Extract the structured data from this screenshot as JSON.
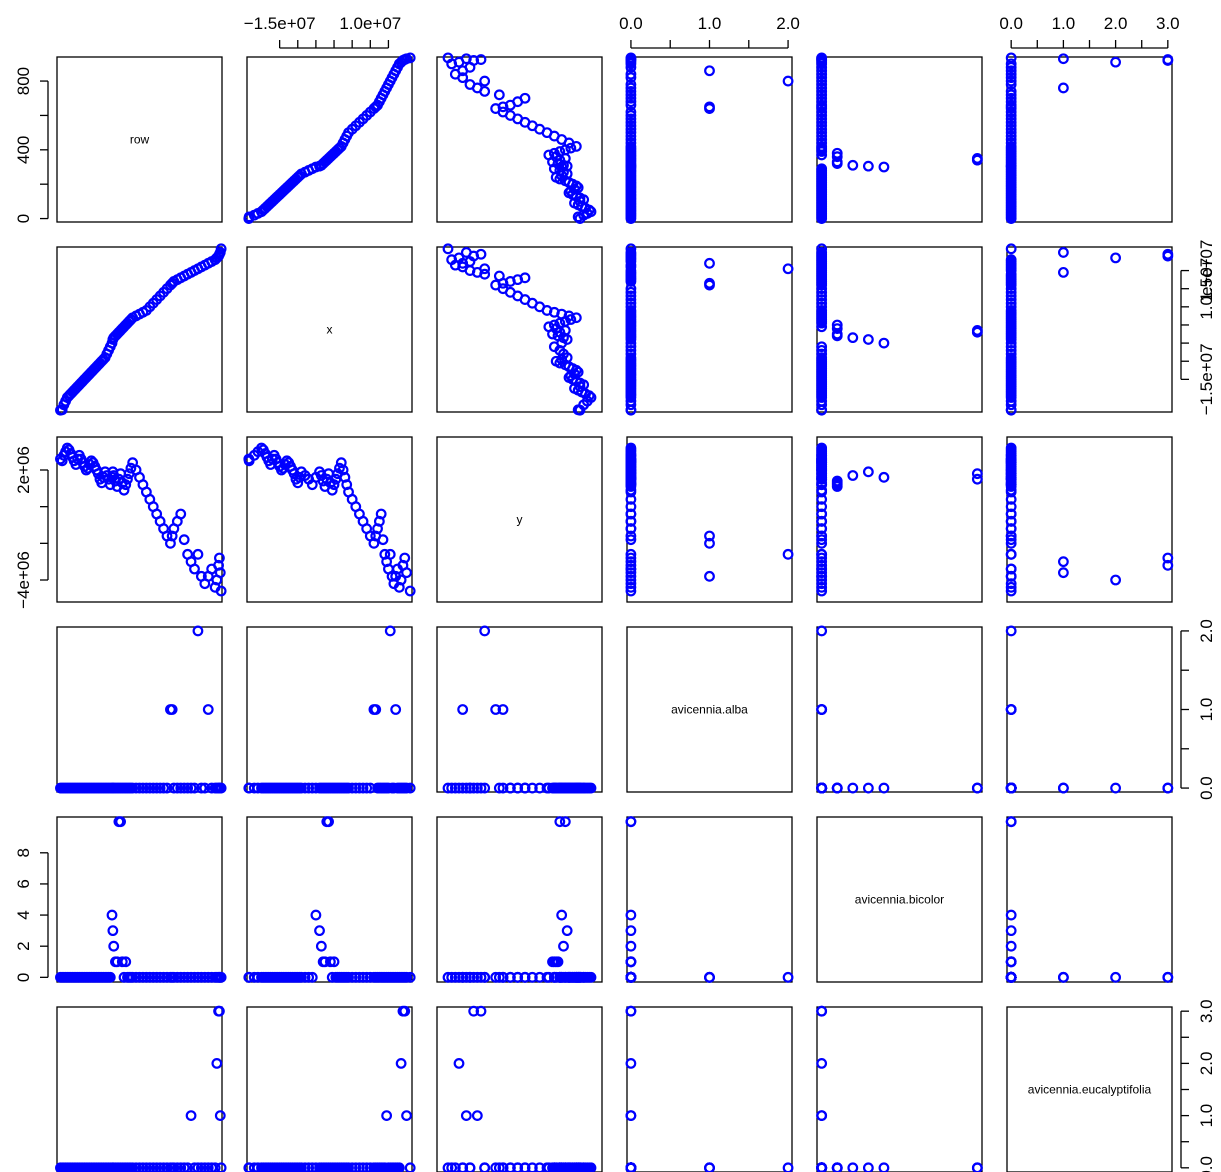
{
  "chart_data": {
    "type": "scatter",
    "matrix": "pairs",
    "point_color": "#0000ff",
    "point_shape": "open-circle",
    "variables": [
      {
        "name": "row",
        "range": [
          -20,
          940
        ],
        "axis_ticks": [
          0,
          200,
          400,
          600,
          800
        ],
        "tick_labels": {
          "0": "0",
          "400": "400",
          "800": "800"
        }
      },
      {
        "name": "x",
        "range": [
          -24000000,
          21500000
        ],
        "axis_ticks": [
          -15000000,
          -10000000,
          -5000000,
          0,
          5000000,
          10000000,
          15000000
        ],
        "tick_labels": {
          "-15000000": "−1.5e+07",
          "10000000": "1.0e+07",
          "15000000": "1.5e+07"
        },
        "left_tick_labels": {
          "-15000000": "−1.5e+07",
          "15000000": "1.5e+07"
        },
        "top_tick_labels": {
          "-15000000": "−1.5e+07",
          "10000000": "1.0e+07"
        }
      },
      {
        "name": "y",
        "range": [
          -5200000,
          3800000
        ],
        "axis_ticks": [
          -4000000,
          -2000000,
          0,
          2000000
        ],
        "tick_labels": {
          "-4000000": "−4e+06",
          "2000000": "2e+06"
        }
      },
      {
        "name": "avicennia.alba",
        "range": [
          -0.05,
          2.05
        ],
        "axis_ticks": [
          0,
          0.5,
          1,
          1.5,
          2
        ],
        "tick_labels": {
          "0": "0.0",
          "1": "1.0",
          "2": "2.0"
        }
      },
      {
        "name": "avicennia.bicolor",
        "range": [
          -0.3,
          10.3
        ],
        "axis_ticks": [
          0,
          2,
          4,
          6,
          8
        ],
        "tick_labels": {
          "0": "0",
          "2": "2",
          "4": "4",
          "6": "6",
          "8": "8"
        },
        "right_tick_labels": {
          "0": "0",
          "4": "4",
          "8": "8"
        }
      },
      {
        "name": "avicennia.eucalyptifolia",
        "range": [
          -0.08,
          3.08
        ],
        "axis_ticks": [
          0,
          0.5,
          1,
          1.5,
          2,
          2.5,
          3
        ],
        "tick_labels": {
          "0": "0.0",
          "1": "1.0",
          "2": "2.0",
          "3": "3.0"
        }
      }
    ],
    "observations": [
      [
        0,
        -23500000,
        2600000,
        0,
        0,
        0
      ],
      [
        10,
        -23400000,
        2500000,
        0,
        0,
        0
      ],
      [
        20,
        -22000000,
        2800000,
        0,
        0,
        0
      ],
      [
        30,
        -21000000,
        3000000,
        0,
        0,
        0
      ],
      [
        40,
        -20000000,
        3200000,
        0,
        0,
        0
      ],
      [
        50,
        -19500000,
        3100000,
        0,
        0,
        0
      ],
      [
        60,
        -19000000,
        2900000,
        0,
        0,
        0
      ],
      [
        70,
        -18500000,
        2700000,
        0,
        0,
        0
      ],
      [
        80,
        -18000000,
        2500000,
        0,
        0,
        0
      ],
      [
        90,
        -17500000,
        2300000,
        0,
        0,
        0
      ],
      [
        100,
        -17000000,
        2600000,
        0,
        0,
        0
      ],
      [
        110,
        -16500000,
        2800000,
        0,
        0,
        0
      ],
      [
        120,
        -16000000,
        2600000,
        0,
        0,
        0
      ],
      [
        130,
        -15500000,
        2400000,
        0,
        0,
        0
      ],
      [
        140,
        -15000000,
        2200000,
        0,
        0,
        0
      ],
      [
        150,
        -14500000,
        2000000,
        0,
        0,
        0
      ],
      [
        160,
        -14000000,
        2100000,
        0,
        0,
        0
      ],
      [
        170,
        -13500000,
        2300000,
        0,
        0,
        0
      ],
      [
        180,
        -13000000,
        2500000,
        0,
        0,
        0
      ],
      [
        190,
        -12500000,
        2400000,
        0,
        0,
        0
      ],
      [
        200,
        -12000000,
        2200000,
        0,
        0,
        0
      ],
      [
        210,
        -11500000,
        2000000,
        0,
        0,
        0
      ],
      [
        220,
        -11000000,
        1800000,
        0,
        0,
        0
      ],
      [
        230,
        -10500000,
        1500000,
        0,
        0,
        0
      ],
      [
        240,
        -10000000,
        1300000,
        0,
        0,
        0
      ],
      [
        250,
        -9500000,
        1600000,
        0,
        0,
        0
      ],
      [
        260,
        -9000000,
        1900000,
        0,
        0,
        0
      ],
      [
        270,
        -8000000,
        1700000,
        0,
        0,
        0
      ],
      [
        280,
        -7000000,
        1500000,
        0,
        0,
        0
      ],
      [
        290,
        -6000000,
        1200000,
        0,
        0,
        0
      ],
      [
        300,
        -5000000,
        1600000,
        0,
        4,
        0
      ],
      [
        305,
        -4000000,
        1900000,
        0,
        3,
        0
      ],
      [
        310,
        -3500000,
        1700000,
        0,
        2,
        0
      ],
      [
        320,
        -3000000,
        1400000,
        0,
        1,
        0
      ],
      [
        330,
        -2500000,
        1100000,
        0,
        1,
        0
      ],
      [
        340,
        -2000000,
        1500000,
        0,
        10,
        0
      ],
      [
        350,
        -1500000,
        1800000,
        0,
        10,
        0
      ],
      [
        360,
        -1000000,
        1300000,
        0,
        1,
        0
      ],
      [
        370,
        -500000,
        900000,
        0,
        0,
        0
      ],
      [
        380,
        0,
        1200000,
        0,
        1,
        0
      ],
      [
        390,
        500000,
        1500000,
        0,
        0,
        0
      ],
      [
        400,
        1000000,
        1800000,
        0,
        0,
        0
      ],
      [
        410,
        1500000,
        2100000,
        0,
        0,
        0
      ],
      [
        420,
        2000000,
        2400000,
        0,
        0,
        0
      ],
      [
        440,
        2500000,
        2000000,
        0,
        0,
        0
      ],
      [
        460,
        3000000,
        1600000,
        0,
        0,
        0
      ],
      [
        480,
        3500000,
        1200000,
        0,
        0,
        0
      ],
      [
        500,
        4000000,
        800000,
        0,
        0,
        0
      ],
      [
        520,
        5000000,
        400000,
        0,
        0,
        0
      ],
      [
        540,
        6000000,
        0,
        0,
        0,
        0
      ],
      [
        560,
        7000000,
        -400000,
        0,
        0,
        0
      ],
      [
        580,
        8000000,
        -800000,
        0,
        0,
        0
      ],
      [
        600,
        9000000,
        -1200000,
        0,
        0,
        0
      ],
      [
        620,
        10000000,
        -1600000,
        0,
        0,
        0
      ],
      [
        640,
        11000000,
        -2000000,
        1,
        0,
        0
      ],
      [
        650,
        11500000,
        -1600000,
        1,
        0,
        0
      ],
      [
        660,
        12000000,
        -1200000,
        0,
        0,
        0
      ],
      [
        680,
        12500000,
        -800000,
        0,
        0,
        0
      ],
      [
        700,
        13000000,
        -400000,
        0,
        0,
        0
      ],
      [
        720,
        13500000,
        -1800000,
        0,
        0,
        0
      ],
      [
        740,
        14000000,
        -2600000,
        0,
        0,
        0
      ],
      [
        760,
        14500000,
        -3000000,
        0,
        0,
        1
      ],
      [
        780,
        15000000,
        -3400000,
        0,
        0,
        0
      ],
      [
        800,
        15500000,
        -2600000,
        2,
        0,
        0
      ],
      [
        820,
        16000000,
        -3800000,
        0,
        0,
        0
      ],
      [
        840,
        16500000,
        -4200000,
        0,
        0,
        0
      ],
      [
        860,
        17000000,
        -3800000,
        1,
        0,
        0
      ],
      [
        880,
        17500000,
        -3400000,
        0,
        0,
        0
      ],
      [
        900,
        18000000,
        -4400000,
        0,
        0,
        0
      ],
      [
        910,
        18500000,
        -4000000,
        0,
        0,
        2
      ],
      [
        920,
        19000000,
        -3200000,
        0,
        0,
        3
      ],
      [
        925,
        19500000,
        -2800000,
        0,
        0,
        3
      ],
      [
        930,
        20000000,
        -3600000,
        0,
        0,
        1
      ],
      [
        935,
        21000000,
        -4600000,
        0,
        0,
        0
      ]
    ]
  }
}
